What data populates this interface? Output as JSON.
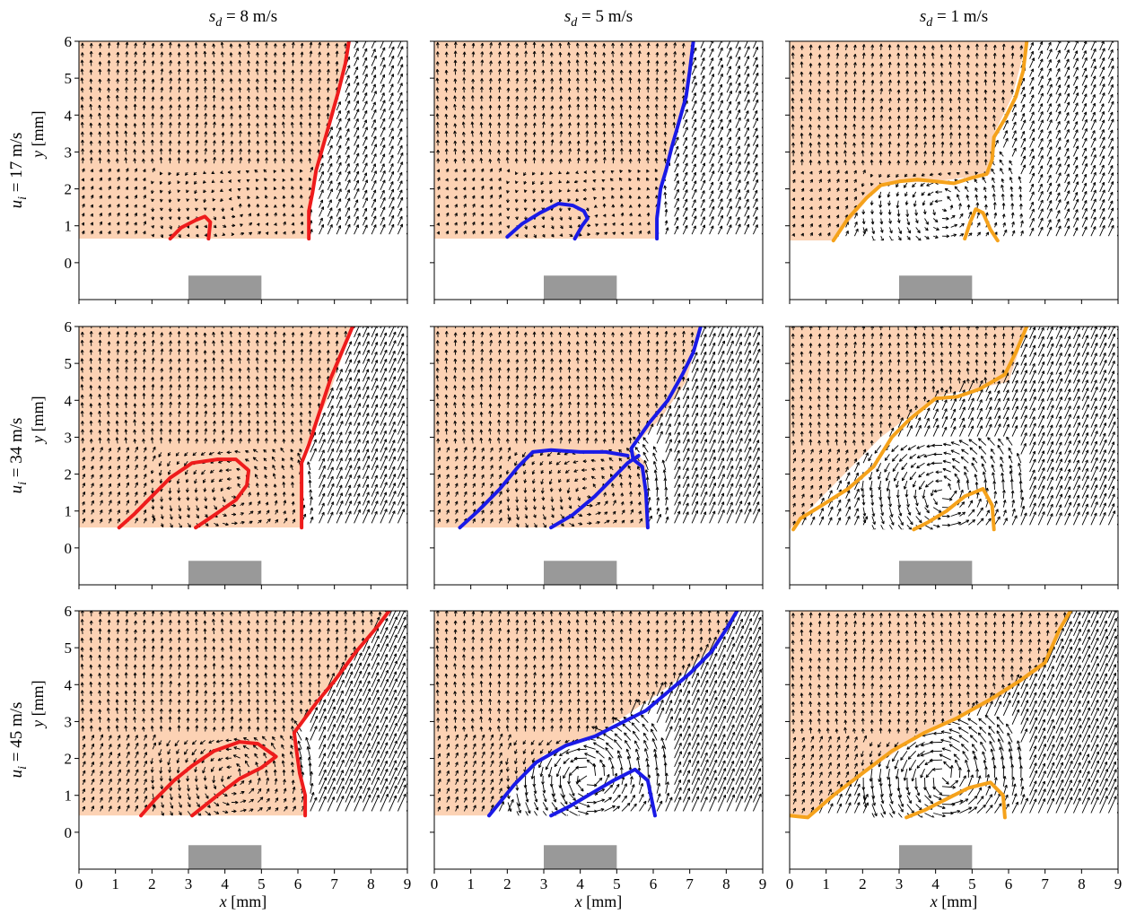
{
  "figure": {
    "column_headers": [
      {
        "sym": "s",
        "sub": "d",
        "rest": " = 8 m/s"
      },
      {
        "sym": "s",
        "sub": "d",
        "rest": " = 5 m/s"
      },
      {
        "sym": "s",
        "sub": "d",
        "rest": " = 1 m/s"
      }
    ],
    "row_headers": [
      {
        "sym": "u",
        "sub": "i",
        "rest": " =  17 m/s"
      },
      {
        "sym": "u",
        "sub": "i",
        "rest": " =  34 m/s"
      },
      {
        "sym": "u",
        "sub": "i",
        "rest": " =  45 m/s"
      }
    ],
    "xlabel": {
      "sym": "x",
      "rest": " [mm]"
    },
    "ylabel": {
      "sym": "y",
      "rest": " [mm]"
    },
    "x_ticks": [
      "0",
      "1",
      "2",
      "3",
      "4",
      "5",
      "6",
      "7",
      "8",
      "9"
    ],
    "y_ticks": [
      "0",
      "1",
      "2",
      "3",
      "4",
      "5",
      "6"
    ],
    "colors": {
      "burned_region": "#fcd2b4",
      "sd8_contour": "#ee1c1c",
      "sd5_contour": "#1a1ae6",
      "sd1_contour": "#f5a21b",
      "block": "#999999",
      "arrows": "#000000"
    }
  },
  "chart_data": {
    "type": "vector-field-contour-grid",
    "xlim": [
      0,
      9
    ],
    "ylim": [
      -1,
      6
    ],
    "obstacle_block": {
      "x": [
        3,
        5
      ],
      "y": [
        -1,
        -0.35
      ]
    },
    "panels": [
      {
        "row": 0,
        "col": 0,
        "ui": "17 m/s",
        "sd": "8 m/s",
        "floor_y": 0.65,
        "shaded": [
          [
            0,
            6
          ],
          [
            7.4,
            6
          ],
          [
            7.1,
            4.5
          ],
          [
            6.5,
            2.5
          ],
          [
            6.3,
            1.5
          ],
          [
            6.3,
            0.65
          ],
          [
            0,
            0.65
          ]
        ],
        "contours": [
          [
            [
              7.4,
              6
            ],
            [
              7.3,
              5.4
            ],
            [
              7.1,
              4.6
            ],
            [
              6.9,
              3.9
            ],
            [
              6.7,
              3.2
            ],
            [
              6.5,
              2.5
            ],
            [
              6.4,
              1.9
            ],
            [
              6.3,
              1.4
            ],
            [
              6.3,
              0.65
            ]
          ],
          [
            [
              2.5,
              0.65
            ],
            [
              2.8,
              0.95
            ],
            [
              3.2,
              1.15
            ],
            [
              3.45,
              1.25
            ],
            [
              3.6,
              1.1
            ],
            [
              3.55,
              0.65
            ]
          ]
        ]
      },
      {
        "row": 0,
        "col": 1,
        "ui": "17 m/s",
        "sd": "5 m/s",
        "floor_y": 0.65,
        "shaded": [
          [
            0,
            6
          ],
          [
            7.1,
            6
          ],
          [
            6.9,
            4.5
          ],
          [
            6.5,
            3.2
          ],
          [
            6.2,
            2
          ],
          [
            6.1,
            0.65
          ],
          [
            0,
            0.65
          ]
        ],
        "contours": [
          [
            [
              7.1,
              6
            ],
            [
              7,
              5.2
            ],
            [
              6.9,
              4.5
            ],
            [
              6.7,
              3.8
            ],
            [
              6.5,
              3.1
            ],
            [
              6.35,
              2.5
            ],
            [
              6.2,
              2
            ],
            [
              6.1,
              1.2
            ],
            [
              6.1,
              0.65
            ]
          ],
          [
            [
              2,
              0.7
            ],
            [
              2.4,
              1.05
            ],
            [
              2.9,
              1.35
            ],
            [
              3.4,
              1.6
            ],
            [
              3.8,
              1.55
            ],
            [
              4.1,
              1.4
            ],
            [
              4.2,
              1.2
            ],
            [
              4.05,
              1
            ],
            [
              3.85,
              0.65
            ]
          ]
        ]
      },
      {
        "row": 0,
        "col": 2,
        "ui": "17 m/s",
        "sd": "1 m/s",
        "floor_y": 0.6,
        "shaded": [
          [
            0,
            6
          ],
          [
            6.5,
            6
          ],
          [
            6.1,
            4.5
          ],
          [
            5.6,
            3.5
          ],
          [
            5.5,
            2.4
          ],
          [
            4,
            2.2
          ],
          [
            2.5,
            2.15
          ],
          [
            1.2,
            0.6
          ],
          [
            0,
            0.6
          ]
        ],
        "contours": [
          [
            [
              6.5,
              6
            ],
            [
              6.4,
              5.2
            ],
            [
              6.2,
              4.5
            ],
            [
              5.9,
              3.9
            ],
            [
              5.6,
              3.4
            ],
            [
              5.55,
              2.8
            ],
            [
              5.4,
              2.4
            ],
            [
              5,
              2.3
            ],
            [
              4.5,
              2.15
            ],
            [
              4,
              2.2
            ],
            [
              3.5,
              2.25
            ],
            [
              3,
              2.2
            ],
            [
              2.5,
              2.1
            ],
            [
              2.1,
              1.75
            ],
            [
              1.6,
              1.2
            ],
            [
              1.2,
              0.6
            ]
          ],
          [
            [
              4.8,
              0.65
            ],
            [
              4.95,
              1.1
            ],
            [
              5.1,
              1.45
            ],
            [
              5.3,
              1.35
            ],
            [
              5.5,
              0.9
            ],
            [
              5.7,
              0.6
            ]
          ]
        ]
      },
      {
        "row": 1,
        "col": 0,
        "ui": "34 m/s",
        "sd": "8 m/s",
        "floor_y": 0.55,
        "shaded": [
          [
            0,
            6
          ],
          [
            7.5,
            6
          ],
          [
            6.8,
            4
          ],
          [
            6.1,
            2.5
          ],
          [
            6.1,
            0.55
          ],
          [
            0,
            0.55
          ]
        ],
        "contours": [
          [
            [
              7.5,
              6
            ],
            [
              7.2,
              5.3
            ],
            [
              6.9,
              4.6
            ],
            [
              6.7,
              4
            ],
            [
              6.5,
              3.4
            ],
            [
              6.3,
              2.8
            ],
            [
              6.1,
              2.3
            ],
            [
              6.1,
              1.5
            ],
            [
              6.1,
              0.55
            ]
          ],
          [
            [
              1.1,
              0.55
            ],
            [
              1.5,
              0.9
            ],
            [
              2,
              1.4
            ],
            [
              2.5,
              1.9
            ],
            [
              3.1,
              2.3
            ],
            [
              3.8,
              2.4
            ],
            [
              4.3,
              2.4
            ],
            [
              4.65,
              2.1
            ],
            [
              4.6,
              1.7
            ],
            [
              4.3,
              1.3
            ],
            [
              3.8,
              0.95
            ],
            [
              3.2,
              0.55
            ]
          ]
        ]
      },
      {
        "row": 1,
        "col": 1,
        "ui": "34 m/s",
        "sd": "5 m/s",
        "floor_y": 0.55,
        "shaded": [
          [
            0,
            6
          ],
          [
            7.3,
            6
          ],
          [
            6.9,
            4.5
          ],
          [
            6.2,
            3.5
          ],
          [
            5.4,
            2.7
          ],
          [
            5.8,
            2.3
          ],
          [
            5.8,
            0.55
          ],
          [
            0,
            0.55
          ]
        ],
        "contours": [
          [
            [
              7.3,
              6
            ],
            [
              7.1,
              5.3
            ],
            [
              6.8,
              4.7
            ],
            [
              6.4,
              4
            ],
            [
              5.9,
              3.4
            ],
            [
              5.4,
              2.7
            ],
            [
              5.45,
              2.4
            ],
            [
              5.7,
              2.2
            ],
            [
              5.8,
              1.5
            ],
            [
              5.85,
              0.55
            ]
          ],
          [
            [
              0.7,
              0.55
            ],
            [
              1.2,
              1
            ],
            [
              1.8,
              1.6
            ],
            [
              2.3,
              2.2
            ],
            [
              2.7,
              2.6
            ],
            [
              3.2,
              2.65
            ],
            [
              4,
              2.6
            ],
            [
              4.7,
              2.6
            ],
            [
              5.3,
              2.5
            ]
          ],
          [
            [
              3.2,
              0.55
            ],
            [
              3.8,
              0.9
            ],
            [
              4.4,
              1.4
            ],
            [
              4.9,
              1.9
            ],
            [
              5.3,
              2.3
            ],
            [
              5.6,
              2.5
            ]
          ]
        ]
      },
      {
        "row": 1,
        "col": 2,
        "ui": "34 m/s",
        "sd": "1 m/s",
        "floor_y": 0.5,
        "shaded": [
          [
            0,
            6
          ],
          [
            6.5,
            6
          ],
          [
            6,
            4.5
          ],
          [
            4,
            4.1
          ],
          [
            2.5,
            3
          ],
          [
            0.5,
            1
          ],
          [
            0,
            0.5
          ]
        ],
        "contours": [
          [
            [
              6.5,
              6
            ],
            [
              6.2,
              5.3
            ],
            [
              5.9,
              4.7
            ],
            [
              5.2,
              4.3
            ],
            [
              4.6,
              4.1
            ],
            [
              4,
              4.05
            ],
            [
              3.3,
              3.5
            ],
            [
              2.8,
              3
            ],
            [
              2.3,
              2.2
            ],
            [
              1.6,
              1.6
            ],
            [
              0.8,
              1.1
            ],
            [
              0.3,
              0.8
            ],
            [
              0.1,
              0.5
            ]
          ],
          [
            [
              3.4,
              0.5
            ],
            [
              3.8,
              0.7
            ],
            [
              4.3,
              1
            ],
            [
              4.8,
              1.4
            ],
            [
              5.3,
              1.6
            ],
            [
              5.55,
              1.15
            ],
            [
              5.6,
              0.5
            ]
          ]
        ]
      },
      {
        "row": 2,
        "col": 0,
        "ui": "45 m/s",
        "sd": "8 m/s",
        "floor_y": 0.45,
        "shaded": [
          [
            0,
            6
          ],
          [
            8.5,
            6
          ],
          [
            7.4,
            4.6
          ],
          [
            6.5,
            3.6
          ],
          [
            5.9,
            2.7
          ],
          [
            6.2,
            0.45
          ],
          [
            0,
            0.45
          ]
        ],
        "contours": [
          [
            [
              8.5,
              6
            ],
            [
              8.2,
              5.6
            ],
            [
              7.6,
              4.9
            ],
            [
              7,
              4.1
            ],
            [
              6.5,
              3.5
            ],
            [
              6.2,
              3.1
            ],
            [
              5.9,
              2.7
            ],
            [
              5.95,
              2.3
            ],
            [
              6.05,
              1.6
            ],
            [
              6.2,
              1
            ],
            [
              6.2,
              0.45
            ]
          ],
          [
            [
              1.7,
              0.45
            ],
            [
              2.1,
              0.9
            ],
            [
              2.6,
              1.4
            ],
            [
              3.1,
              1.8
            ],
            [
              3.7,
              2.2
            ],
            [
              4.4,
              2.45
            ],
            [
              4.9,
              2.4
            ],
            [
              5.4,
              2.05
            ],
            [
              5,
              1.75
            ],
            [
              4.4,
              1.45
            ],
            [
              3.8,
              1
            ],
            [
              3.1,
              0.45
            ]
          ]
        ]
      },
      {
        "row": 2,
        "col": 1,
        "ui": "45 m/s",
        "sd": "5 m/s",
        "floor_y": 0.45,
        "shaded": [
          [
            0,
            6
          ],
          [
            8.3,
            6
          ],
          [
            7.6,
            5
          ],
          [
            6.5,
            4
          ],
          [
            5,
            3
          ],
          [
            4.2,
            2.5
          ],
          [
            3,
            2.1
          ],
          [
            1.5,
            0.45
          ],
          [
            0,
            0.45
          ]
        ],
        "contours": [
          [
            [
              8.3,
              6
            ],
            [
              8,
              5.5
            ],
            [
              7.6,
              4.9
            ],
            [
              7,
              4.3
            ],
            [
              6.4,
              3.8
            ],
            [
              5.8,
              3.3
            ],
            [
              5.1,
              2.95
            ],
            [
              4.4,
              2.6
            ],
            [
              3.6,
              2.35
            ],
            [
              2.8,
              1.9
            ],
            [
              2.2,
              1.3
            ],
            [
              1.5,
              0.45
            ]
          ],
          [
            [
              3.2,
              0.45
            ],
            [
              3.7,
              0.7
            ],
            [
              4.3,
              1.05
            ],
            [
              4.9,
              1.4
            ],
            [
              5.5,
              1.7
            ],
            [
              5.85,
              1.4
            ],
            [
              6.05,
              0.45
            ]
          ]
        ]
      },
      {
        "row": 2,
        "col": 2,
        "ui": "45 m/s",
        "sd": "1 m/s",
        "floor_y": 0.4,
        "shaded": [
          [
            0,
            6
          ],
          [
            7.7,
            6
          ],
          [
            7,
            4.5
          ],
          [
            5.5,
            3.5
          ],
          [
            3.5,
            2.6
          ],
          [
            1.5,
            1.2
          ],
          [
            0.5,
            0.4
          ],
          [
            0,
            0.4
          ]
        ],
        "contours": [
          [
            [
              7.7,
              6
            ],
            [
              7.4,
              5.5
            ],
            [
              7,
              4.6
            ],
            [
              6.3,
              4.1
            ],
            [
              5.5,
              3.6
            ],
            [
              4.6,
              3.1
            ],
            [
              3.7,
              2.7
            ],
            [
              2.8,
              2.2
            ],
            [
              2,
              1.6
            ],
            [
              1.2,
              1
            ],
            [
              0.5,
              0.4
            ],
            [
              0,
              0.45
            ]
          ],
          [
            [
              3.2,
              0.4
            ],
            [
              3.7,
              0.6
            ],
            [
              4.3,
              0.9
            ],
            [
              4.9,
              1.2
            ],
            [
              5.5,
              1.35
            ],
            [
              5.85,
              1
            ],
            [
              5.9,
              0.4
            ]
          ]
        ]
      }
    ]
  }
}
